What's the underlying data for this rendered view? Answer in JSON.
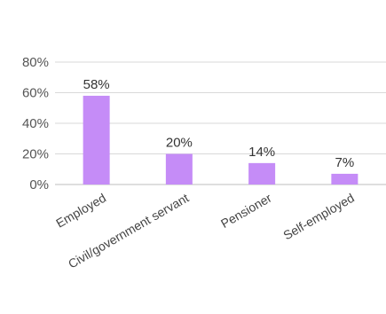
{
  "chart_data": {
    "type": "bar",
    "categories": [
      "Employed",
      "Civil/government servant",
      "Pensioner",
      "Self-employed"
    ],
    "values": [
      58,
      20,
      14,
      7
    ],
    "data_labels": [
      "58%",
      "20%",
      "14%",
      "7%"
    ],
    "y_ticks": [
      "0%",
      "20%",
      "40%",
      "60%",
      "80%"
    ],
    "ylim": [
      0,
      80
    ],
    "grid": true,
    "bar_color": "#c58cf7"
  }
}
